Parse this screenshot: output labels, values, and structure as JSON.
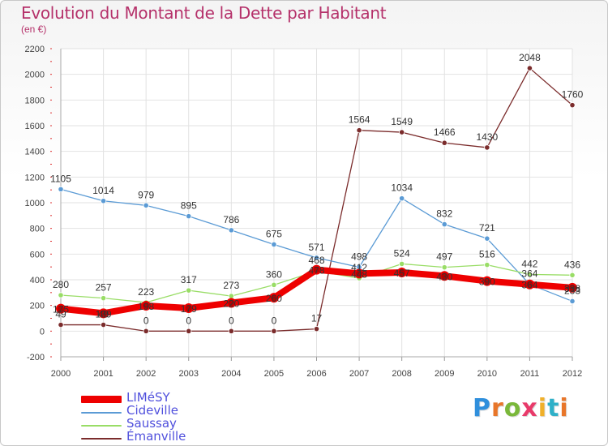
{
  "title": "Evolution du Montant de la Dette par Habitant",
  "subtitle": "(en €)",
  "logo": {
    "text": "Proxiti",
    "letter_colors": [
      "#2f8fdc",
      "#e8762a",
      "#7ab83a",
      "#e83a6a",
      "#f0b02a",
      "#2fb0c8",
      "#e8762a"
    ]
  },
  "chart_data": {
    "type": "line",
    "x": [
      "2000",
      "2001",
      "2002",
      "2003",
      "2004",
      "2005",
      "2006",
      "2007",
      "2008",
      "2009",
      "2010",
      "2011",
      "2012"
    ],
    "ylim": [
      -200,
      2200
    ],
    "yticks": [
      "-200",
      "0",
      "200",
      "400",
      "600",
      "800",
      "1000",
      "1200",
      "1400",
      "1600",
      "1800",
      "2000",
      "2200"
    ],
    "grid": true,
    "legend_position": "bottom-left",
    "series": [
      {
        "name": "LIMéSY",
        "color": "#ee0000",
        "values": [
          175,
          139,
          198,
          179,
          220,
          260,
          478,
          448,
          457,
          430,
          390,
          364,
          338
        ],
        "labels": [
          "175",
          "139",
          "198",
          "179",
          "220",
          "260",
          "478",
          "448",
          "457",
          "430",
          "390",
          "364",
          "338"
        ]
      },
      {
        "name": "Cideville",
        "color": "#5b9bd5",
        "values": [
          1105,
          1014,
          979,
          895,
          786,
          675,
          571,
          498,
          1034,
          832,
          721,
          364,
          233
        ],
        "labels": [
          "1105",
          "1014",
          "979",
          "895",
          "786",
          "675",
          "571",
          "498",
          "1034",
          "832",
          "721",
          "364",
          "233"
        ]
      },
      {
        "name": "Saussay",
        "color": "#99dd66",
        "values": [
          280,
          257,
          223,
          317,
          273,
          360,
          468,
          412,
          524,
          497,
          516,
          442,
          436
        ],
        "labels": [
          "280",
          "257",
          "223",
          "317",
          "273",
          "360",
          "468",
          "412",
          "524",
          "497",
          "516",
          "442",
          "436"
        ]
      },
      {
        "name": "Émanville",
        "color": "#7b2c2c",
        "values": [
          49,
          49,
          0,
          0,
          0,
          0,
          17,
          1564,
          1549,
          1466,
          1430,
          2048,
          1760
        ],
        "labels": [
          "49",
          "49",
          "0",
          "0",
          "0",
          "0",
          "17",
          "1564",
          "1549",
          "1466",
          "1430",
          "2048",
          "1760"
        ]
      }
    ]
  }
}
